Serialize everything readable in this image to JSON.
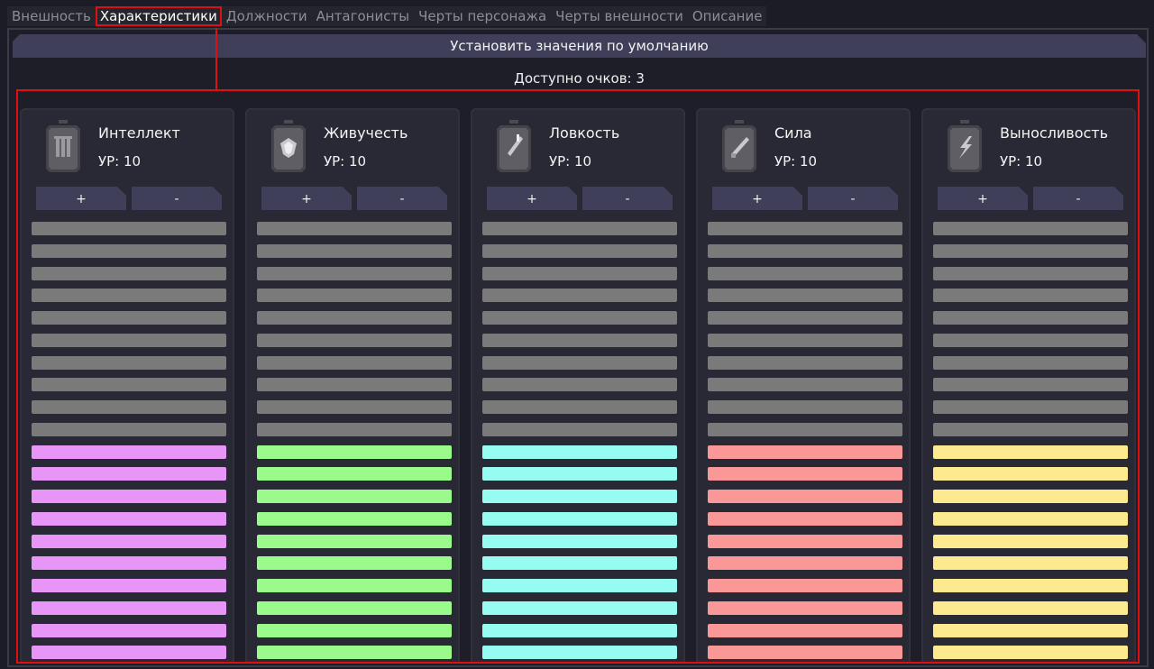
{
  "tabs": [
    {
      "label": "Внешность",
      "active": false
    },
    {
      "label": "Характеристики",
      "active": true
    },
    {
      "label": "Должности",
      "active": false
    },
    {
      "label": "Антагонисты",
      "active": false
    },
    {
      "label": "Черты персонажа",
      "active": false
    },
    {
      "label": "Черты внешности",
      "active": false
    },
    {
      "label": "Описание",
      "active": false
    }
  ],
  "default_button": "Установить значения по умолчанию",
  "points_available": "Доступно очков: 3",
  "filled_color_empty": "#7a7a7a",
  "bars_total": 20,
  "stats": [
    {
      "name": "Интеллект",
      "level": "УР: 10",
      "value": 10,
      "color": "#e796f8",
      "icon": "brain-stone-icon"
    },
    {
      "name": "Живучесть",
      "level": "УР: 10",
      "value": 10,
      "color": "#9afa8c",
      "icon": "heart-stone-icon"
    },
    {
      "name": "Ловкость",
      "level": "УР: 10",
      "value": 10,
      "color": "#96fbf1",
      "icon": "dagger-stone-icon"
    },
    {
      "name": "Сила",
      "level": "УР: 10",
      "value": 10,
      "color": "#fa9897",
      "icon": "sword-stone-icon"
    },
    {
      "name": "Выносливость",
      "level": "УР: 10",
      "value": 10,
      "color": "#fde98e",
      "icon": "lightning-stone-icon"
    }
  ],
  "plus_label": "+",
  "minus_label": "-"
}
